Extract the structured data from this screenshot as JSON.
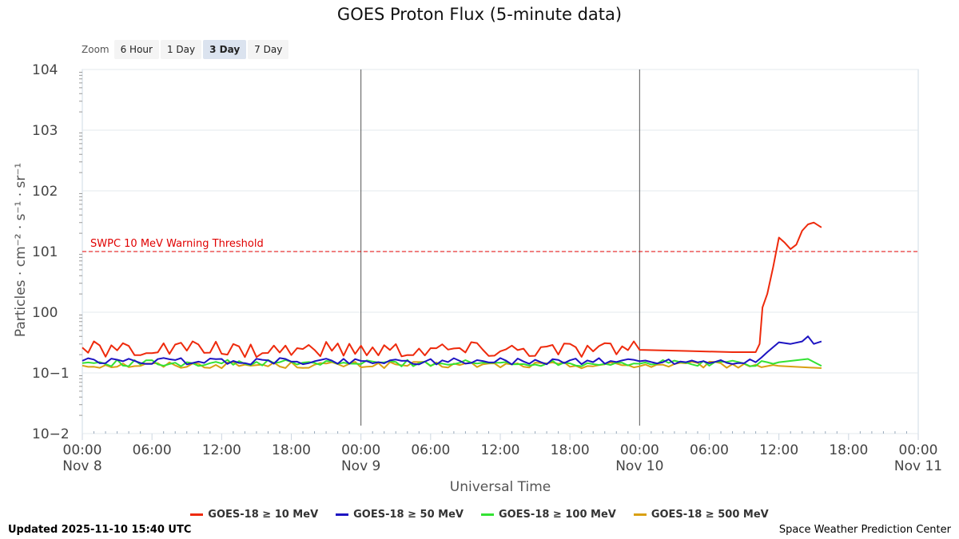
{
  "title": "GOES Proton Flux (5-minute data)",
  "zoom": {
    "label": "Zoom",
    "buttons": [
      "6 Hour",
      "1 Day",
      "3 Day",
      "7 Day"
    ],
    "active": "3 Day"
  },
  "footer": {
    "updated": "Updated 2025-11-10 15:40 UTC",
    "credit": "Space Weather Prediction Center"
  },
  "chart_data": {
    "type": "line",
    "title": "GOES Proton Flux (5-minute data)",
    "xlabel": "Universal Time",
    "ylabel": "Particles · cm⁻² · s⁻¹ · sr⁻¹",
    "y_scale": "log",
    "ylim": [
      0.01,
      10000
    ],
    "y_ticks": [
      {
        "base": "10",
        "exp": "4"
      },
      {
        "base": "10",
        "exp": "3"
      },
      {
        "base": "10",
        "exp": "2"
      },
      {
        "base": "10",
        "exp": "1"
      },
      {
        "base": "10",
        "exp": "0"
      },
      {
        "base": "10",
        "exp": "−1"
      },
      {
        "base": "10",
        "exp": "−2"
      }
    ],
    "x_ticks": [
      {
        "time": "00:00",
        "date": "Nov 8"
      },
      {
        "time": "06:00",
        "date": ""
      },
      {
        "time": "12:00",
        "date": ""
      },
      {
        "time": "18:00",
        "date": ""
      },
      {
        "time": "00:00",
        "date": "Nov 9"
      },
      {
        "time": "06:00",
        "date": ""
      },
      {
        "time": "12:00",
        "date": ""
      },
      {
        "time": "18:00",
        "date": ""
      },
      {
        "time": "00:00",
        "date": "Nov 10"
      },
      {
        "time": "06:00",
        "date": ""
      },
      {
        "time": "12:00",
        "date": ""
      },
      {
        "time": "18:00",
        "date": ""
      },
      {
        "time": "00:00",
        "date": "Nov 11"
      }
    ],
    "xlim": [
      "2025-11-08 00:00",
      "2025-11-11 00:00"
    ],
    "threshold": {
      "label": "SWPC 10 MeV Warning Threshold",
      "value": 10,
      "color": "#e00000"
    },
    "day_markers": [
      "2025-11-09 00:00",
      "2025-11-10 00:00"
    ],
    "grid": true,
    "legend_position": "bottom",
    "series": [
      {
        "name": "GOES-18 ≥ 10 MeV",
        "color": "#ee2a0c",
        "baseline": 0.22,
        "points": [
          [
            "2025-11-10 00:00",
            0.24
          ],
          [
            "2025-11-10 04:00",
            0.23
          ],
          [
            "2025-11-10 08:00",
            0.22
          ],
          [
            "2025-11-10 10:00",
            0.22
          ],
          [
            "2025-11-10 10:20",
            0.3
          ],
          [
            "2025-11-10 10:35",
            1.2
          ],
          [
            "2025-11-10 11:00",
            2.0
          ],
          [
            "2025-11-10 11:30",
            5.5
          ],
          [
            "2025-11-10 12:00",
            17
          ],
          [
            "2025-11-10 12:30",
            14
          ],
          [
            "2025-11-10 13:00",
            11
          ],
          [
            "2025-11-10 13:30",
            13
          ],
          [
            "2025-11-10 14:00",
            22
          ],
          [
            "2025-11-10 14:30",
            28
          ],
          [
            "2025-11-10 15:00",
            30
          ],
          [
            "2025-11-10 15:40",
            25
          ]
        ]
      },
      {
        "name": "GOES-18 ≥ 50 MeV",
        "color": "#1d14c2",
        "baseline": 0.15,
        "points": [
          [
            "2025-11-10 10:00",
            0.15
          ],
          [
            "2025-11-10 10:30",
            0.18
          ],
          [
            "2025-11-10 11:00",
            0.22
          ],
          [
            "2025-11-10 12:00",
            0.32
          ],
          [
            "2025-11-10 13:00",
            0.3
          ],
          [
            "2025-11-10 14:00",
            0.33
          ],
          [
            "2025-11-10 14:30",
            0.4
          ],
          [
            "2025-11-10 15:00",
            0.3
          ],
          [
            "2025-11-10 15:40",
            0.33
          ]
        ]
      },
      {
        "name": "GOES-18 ≥ 100 MeV",
        "color": "#33e233",
        "baseline": 0.14,
        "points": [
          [
            "2025-11-10 12:00",
            0.15
          ],
          [
            "2025-11-10 14:30",
            0.17
          ],
          [
            "2025-11-10 15:40",
            0.13
          ]
        ]
      },
      {
        "name": "GOES-18 ≥ 500 MeV",
        "color": "#d9a013",
        "baseline": 0.13,
        "points": [
          [
            "2025-11-10 12:00",
            0.13
          ],
          [
            "2025-11-10 15:40",
            0.12
          ]
        ]
      }
    ]
  }
}
